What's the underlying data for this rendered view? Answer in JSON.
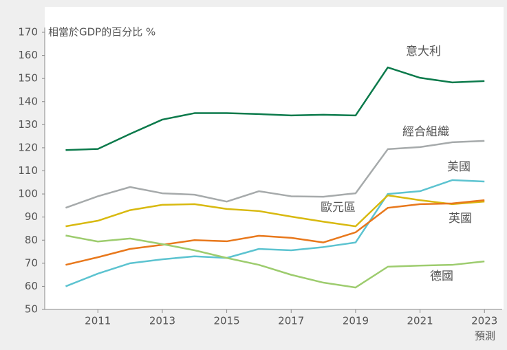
{
  "chart_data": {
    "type": "line",
    "y_label": "相當於GDP的百分比 %",
    "annotation": "預測",
    "x": [
      2010,
      2011,
      2012,
      2013,
      2014,
      2015,
      2016,
      2017,
      2018,
      2019,
      2020,
      2021,
      2022,
      2023
    ],
    "xlim": [
      2009.35,
      2023.55
    ],
    "xticks": [
      2011,
      2013,
      2015,
      2017,
      2019,
      2021,
      2023
    ],
    "ylim": [
      50,
      170
    ],
    "yticks": [
      50,
      60,
      70,
      80,
      90,
      100,
      110,
      120,
      130,
      140,
      150,
      160,
      170
    ],
    "series": [
      {
        "name": "意大利",
        "color": "#0b7a4b",
        "values": [
          119,
          119.5,
          126,
          132.2,
          135,
          135,
          134.6,
          134,
          134.3,
          134,
          154.8,
          150.3,
          148.3,
          148.9
        ]
      },
      {
        "name": "經合組織",
        "color": "#a6aaab",
        "values": [
          94,
          99,
          103,
          100.3,
          99.7,
          96.7,
          101.2,
          99,
          98.8,
          100.3,
          119.4,
          120.3,
          122.4,
          123
        ]
      },
      {
        "name": "美國",
        "color": "#5cc3d0",
        "values": [
          60,
          65.5,
          70,
          71.7,
          73,
          72.3,
          76.2,
          75.6,
          77,
          79,
          100,
          101.2,
          106,
          105.4
        ]
      },
      {
        "name": "歐元區",
        "color": "#d8b90f",
        "values": [
          86,
          88.4,
          93,
          95.3,
          95.6,
          93.5,
          92.6,
          90.2,
          88,
          86,
          99.4,
          97.3,
          95.6,
          96.7
        ]
      },
      {
        "name": "英國",
        "color": "#e8781c",
        "values": [
          69.3,
          72.6,
          76.2,
          78,
          80,
          79.5,
          81.9,
          81,
          79,
          83.4,
          94,
          95.6,
          95.9,
          97.3
        ]
      },
      {
        "name": "德國",
        "color": "#9dcc6e",
        "values": [
          82,
          79.4,
          80.7,
          78.3,
          75.6,
          72.3,
          69.3,
          65,
          61.6,
          59.5,
          68.5,
          69,
          69.3,
          70.8
        ]
      }
    ]
  }
}
